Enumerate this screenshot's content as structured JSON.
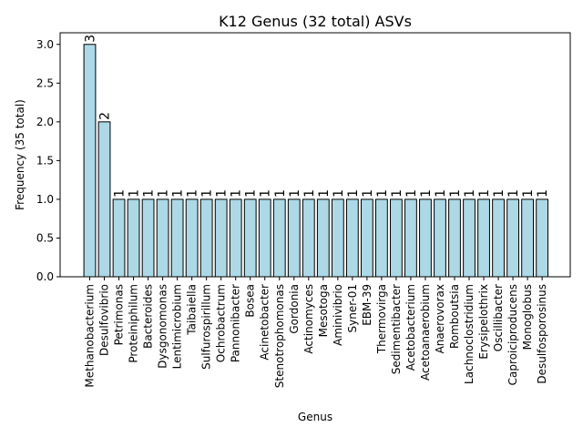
{
  "chart_data": {
    "type": "bar",
    "title": "K12 Genus (32 total) ASVs",
    "xlabel": "Genus",
    "ylabel": "Frequency (35 total)",
    "ylim": [
      0,
      3.15
    ],
    "yticks": [
      "0.0",
      "0.5",
      "1.0",
      "1.5",
      "2.0",
      "2.5",
      "3.0"
    ],
    "grid": false,
    "bar_color": "#add8e6",
    "edge_color": "#000000",
    "categories": [
      "Methanobacterium",
      "Desulfovibrio",
      "Petrimonas",
      "Proteiniphilum",
      "Bacteroides",
      "Dysgonomonas",
      "Lentimicrobium",
      "Taibaiella",
      "Sulfurospirillum",
      "Ochrobactrum",
      "Pannonibacter",
      "Bosea",
      "Acinetobacter",
      "Stenotrophomonas",
      "Gordonia",
      "Actinomyces",
      "Mesotoga",
      "Aminivibrio",
      "Syner-01",
      "EBM-39",
      "Thermovirga",
      "Sedimentibacter",
      "Acetobacterium",
      "Acetoanaerobium",
      "Anaerovorax",
      "Romboutsia",
      "Lachnoclostridium",
      "Erysipelothrix",
      "Oscillibacter",
      "Caproiciproducens",
      "Monoglobus",
      "Desulfosporosinus"
    ],
    "values": [
      3,
      2,
      1,
      1,
      1,
      1,
      1,
      1,
      1,
      1,
      1,
      1,
      1,
      1,
      1,
      1,
      1,
      1,
      1,
      1,
      1,
      1,
      1,
      1,
      1,
      1,
      1,
      1,
      1,
      1,
      1,
      1
    ],
    "data_labels": [
      "3",
      "2",
      "1",
      "1",
      "1",
      "1",
      "1",
      "1",
      "1",
      "1",
      "1",
      "1",
      "1",
      "1",
      "1",
      "1",
      "1",
      "1",
      "1",
      "1",
      "1",
      "1",
      "1",
      "1",
      "1",
      "1",
      "1",
      "1",
      "1",
      "1",
      "1",
      "1"
    ]
  }
}
